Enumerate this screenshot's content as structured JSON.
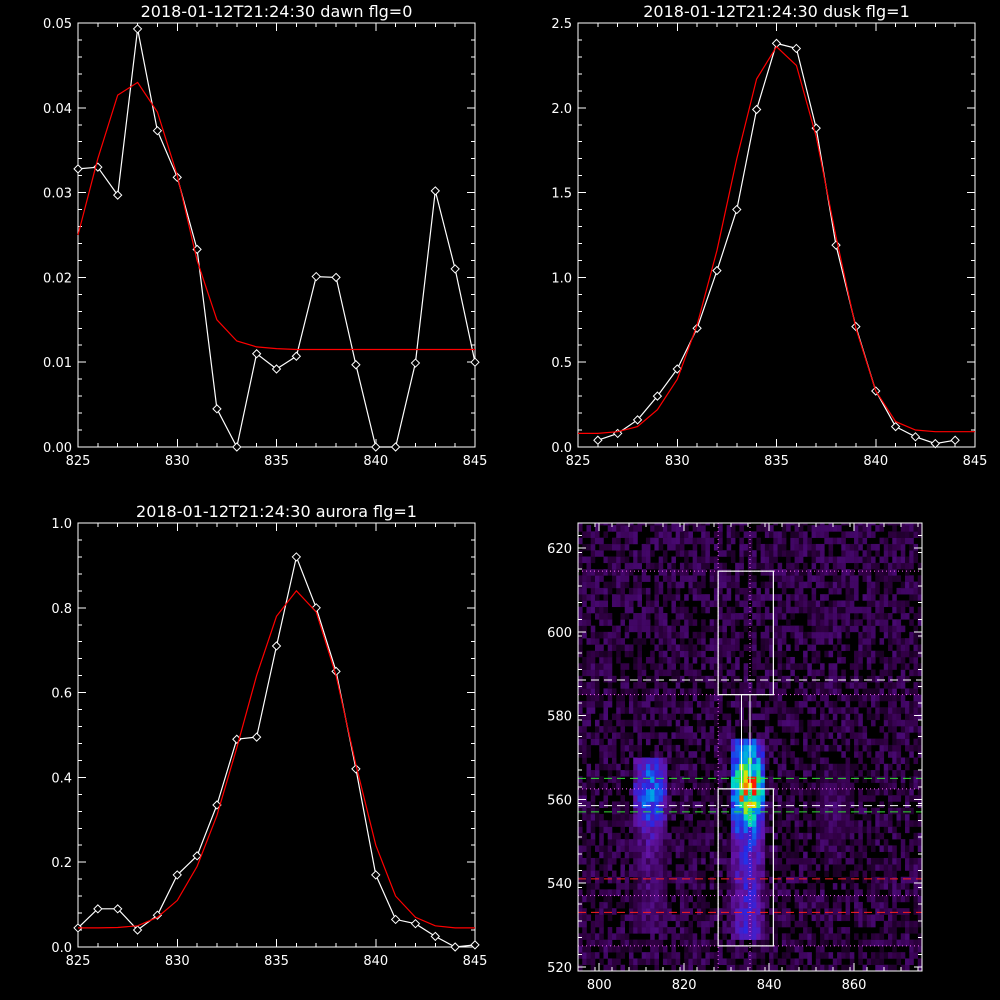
{
  "colors": {
    "background": "#000000",
    "axes": "#ffffff",
    "data": "#ffffff",
    "fit": "#ff0000",
    "green_lines": "#33dd33",
    "red_lines": "#ff2020",
    "white_lines": "#ffffff",
    "magenta_dotted": "#ff66ff"
  },
  "chart_data": [
    {
      "type": "line",
      "title": "2018-01-12T21:24:30 dawn flg=0",
      "xlabel": "",
      "ylabel": "",
      "xlim": [
        825,
        845
      ],
      "ylim": [
        0,
        0.05
      ],
      "xticks": [
        "825",
        "830",
        "835",
        "840",
        "845"
      ],
      "yticks": [
        "0.00",
        "0.01",
        "0.02",
        "0.03",
        "0.04",
        "0.05"
      ],
      "series": [
        {
          "marker": "diamond",
          "x": [
            825,
            826,
            827,
            828,
            829,
            830,
            831,
            832,
            833,
            834,
            835,
            836,
            837,
            838,
            839,
            840,
            841,
            842,
            843,
            844,
            845
          ],
          "y": [
            0.0328,
            0.033,
            0.0297,
            0.0493,
            0.0373,
            0.0318,
            0.0233,
            0.0045,
            0.0,
            0.011,
            0.0092,
            0.0107,
            0.0201,
            0.02,
            0.0097,
            0.0,
            0.0,
            0.0099,
            0.0302,
            0.021,
            0.01
          ]
        },
        {
          "marker": "none",
          "x": [
            825,
            826,
            827,
            828,
            829,
            830,
            831,
            832,
            833,
            834,
            835,
            836,
            838,
            840,
            842,
            845
          ],
          "y": [
            0.025,
            0.034,
            0.0415,
            0.043,
            0.0395,
            0.032,
            0.022,
            0.015,
            0.0125,
            0.0118,
            0.0116,
            0.0115,
            0.0115,
            0.0115,
            0.0115,
            0.0115
          ]
        }
      ]
    },
    {
      "type": "line",
      "title": "2018-01-12T21:24:30 dusk flg=1",
      "xlabel": "",
      "ylabel": "",
      "xlim": [
        825,
        845
      ],
      "ylim": [
        0,
        2.5
      ],
      "xticks": [
        "825",
        "830",
        "835",
        "840",
        "845"
      ],
      "yticks": [
        "0.0",
        "0.5",
        "1.0",
        "1.5",
        "2.0",
        "2.5"
      ],
      "series": [
        {
          "marker": "diamond",
          "x": [
            826,
            827,
            828,
            829,
            830,
            831,
            832,
            833,
            834,
            835,
            836,
            837,
            838,
            839,
            840,
            841,
            842,
            843,
            844
          ],
          "y": [
            0.04,
            0.08,
            0.16,
            0.3,
            0.46,
            0.7,
            1.04,
            1.4,
            1.99,
            2.38,
            2.35,
            1.88,
            1.19,
            0.71,
            0.33,
            0.12,
            0.06,
            0.02,
            0.04
          ]
        },
        {
          "marker": "none",
          "x": [
            825,
            826,
            827,
            828,
            829,
            830,
            831,
            832,
            833,
            834,
            835,
            836,
            837,
            838,
            839,
            840,
            841,
            842,
            843,
            844,
            845
          ],
          "y": [
            0.08,
            0.08,
            0.09,
            0.12,
            0.22,
            0.4,
            0.72,
            1.16,
            1.7,
            2.17,
            2.36,
            2.25,
            1.83,
            1.24,
            0.7,
            0.33,
            0.15,
            0.1,
            0.09,
            0.09,
            0.09
          ]
        }
      ]
    },
    {
      "type": "line",
      "title": "2018-01-12T21:24:30 aurora flg=1",
      "xlabel": "",
      "ylabel": "",
      "xlim": [
        825,
        845
      ],
      "ylim": [
        0,
        1.0
      ],
      "xticks": [
        "825",
        "830",
        "835",
        "840",
        "845"
      ],
      "yticks": [
        "0.0",
        "0.2",
        "0.4",
        "0.6",
        "0.8",
        "1.0"
      ],
      "series": [
        {
          "marker": "diamond",
          "x": [
            825,
            826,
            827,
            828,
            829,
            830,
            831,
            832,
            833,
            834,
            835,
            836,
            837,
            838,
            839,
            840,
            841,
            842,
            843,
            844,
            845
          ],
          "y": [
            0.045,
            0.09,
            0.09,
            0.04,
            0.075,
            0.17,
            0.215,
            0.335,
            0.49,
            0.495,
            0.71,
            0.92,
            0.8,
            0.65,
            0.42,
            0.17,
            0.065,
            0.055,
            0.025,
            0.0,
            0.005
          ]
        },
        {
          "marker": "none",
          "x": [
            825,
            826,
            827,
            828,
            829,
            830,
            831,
            832,
            833,
            834,
            835,
            836,
            837,
            838,
            839,
            840,
            841,
            842,
            843,
            844,
            845
          ],
          "y": [
            0.045,
            0.045,
            0.046,
            0.05,
            0.07,
            0.11,
            0.19,
            0.31,
            0.47,
            0.64,
            0.78,
            0.84,
            0.79,
            0.64,
            0.43,
            0.24,
            0.12,
            0.07,
            0.05,
            0.045,
            0.045
          ]
        }
      ]
    },
    {
      "type": "heatmap",
      "title": "",
      "xlabel": "",
      "ylabel": "",
      "xlim": [
        795,
        876
      ],
      "ylim": [
        519,
        626
      ],
      "xticks": [
        "800",
        "820",
        "840",
        "860"
      ],
      "yticks": [
        "520",
        "540",
        "560",
        "580",
        "600",
        "620"
      ],
      "colormap": "black-purple-blue-cyan-green-yellow-red",
      "bands": [
        {
          "x_center": 812,
          "x_halfwidth": 3.5,
          "y_from": 527,
          "y_to": 569,
          "peak": 0.55,
          "peak_y": 561
        },
        {
          "x_center": 835,
          "x_halfwidth": 3.5,
          "y_from": 526,
          "y_to": 574,
          "peak": 1.0,
          "peak_y": 562
        },
        {
          "x_center": 855,
          "x_halfwidth": 3.5,
          "y_from": 543,
          "y_to": 567,
          "peak": 0.18,
          "peak_y": 557
        }
      ],
      "boxes": [
        {
          "x": [
            828,
            841
          ],
          "y": [
            525,
            562.5
          ]
        },
        {
          "x": [
            828,
            841
          ],
          "y": [
            585,
            614.5
          ]
        }
      ],
      "connector_x": [
        833.5,
        835.5
      ],
      "dashed_lines": [
        {
          "y": 588.5,
          "color": "white"
        },
        {
          "y": 565,
          "color": "green"
        },
        {
          "y": 557,
          "color": "green"
        },
        {
          "y": 558.5,
          "color": "white"
        },
        {
          "y": 541,
          "color": "red"
        },
        {
          "y": 533,
          "color": "red"
        }
      ],
      "dotted_h_lines": [
        614.5,
        585,
        562.5,
        537,
        525
      ],
      "dotted_v_lines": [
        828,
        835.5
      ]
    }
  ]
}
